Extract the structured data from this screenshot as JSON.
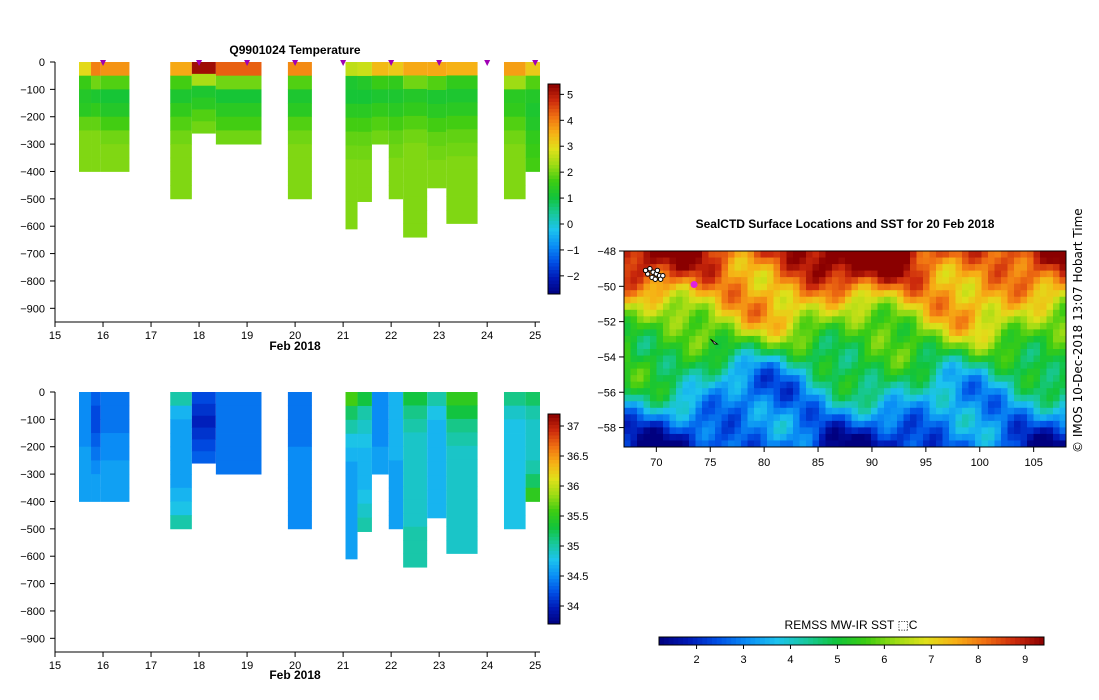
{
  "figure": {
    "side_label": "© IMOS 10-Dec-2018 13:07 Hobart Time"
  },
  "colors": {
    "colormap": [
      "#00007f",
      "#0019b5",
      "#0050e6",
      "#0a8ef5",
      "#1cc3ee",
      "#18c89b",
      "#12c43a",
      "#3ccc12",
      "#9cdc14",
      "#e0e01a",
      "#f7b015",
      "#f07012",
      "#cc2a0c",
      "#8a0000"
    ]
  },
  "chart_data": [
    {
      "id": "temperature",
      "type": "heatmap",
      "title": "Q9901024  Temperature",
      "xlabel": "Feb 2018",
      "ylabel": "",
      "xlim": [
        15,
        25.1
      ],
      "ylim": [
        -950,
        0
      ],
      "x_ticks": [
        15,
        16,
        17,
        18,
        19,
        20,
        21,
        22,
        23,
        24,
        25
      ],
      "y_ticks": [
        0,
        -100,
        -200,
        -300,
        -400,
        -500,
        -600,
        -700,
        -800,
        -900
      ],
      "colorbar": {
        "min": -2.7,
        "max": 5.4,
        "ticks": [
          -2,
          -1,
          0,
          1,
          2,
          3,
          4,
          5
        ]
      },
      "surfacing_markers": [
        16,
        18,
        19,
        20,
        21,
        22,
        23,
        24,
        25
      ],
      "profiles": [
        {
          "x0": 15.5,
          "x1": 15.75,
          "max_depth": 400,
          "values": [
            3.0,
            1.6,
            1.3,
            1.4,
            1.9,
            2.1,
            2.1,
            2.1
          ]
        },
        {
          "x0": 15.75,
          "x1": 15.95,
          "max_depth": 400,
          "values": [
            4.0,
            2.0,
            1.2,
            1.5,
            1.9,
            2.1,
            2.1,
            2.1
          ]
        },
        {
          "x0": 15.95,
          "x1": 16.55,
          "max_depth": 400,
          "values": [
            3.8,
            1.8,
            1.1,
            1.3,
            1.7,
            2.0,
            2.1,
            2.1
          ]
        },
        {
          "x0": 17.4,
          "x1": 17.85,
          "max_depth": 500,
          "values": [
            3.6,
            1.7,
            1.2,
            1.5,
            1.8,
            2.0,
            2.1,
            2.1,
            2.1,
            2.1
          ]
        },
        {
          "x0": 17.85,
          "x1": 18.35,
          "max_depth": 260,
          "values": [
            5.2,
            2.4,
            1.2,
            1.4,
            1.8,
            2.0
          ]
        },
        {
          "x0": 18.35,
          "x1": 19.3,
          "max_depth": 300,
          "values": [
            4.3,
            2.0,
            1.1,
            1.4,
            1.7,
            2.0
          ]
        },
        {
          "x0": 19.85,
          "x1": 20.35,
          "max_depth": 500,
          "values": [
            3.9,
            1.8,
            1.2,
            1.4,
            1.8,
            2.0,
            2.1,
            2.1,
            2.1,
            2.1
          ]
        },
        {
          "x0": 21.05,
          "x1": 21.3,
          "max_depth": 610,
          "values": [
            2.6,
            1.2,
            1.1,
            1.4,
            1.7,
            1.9,
            2.0,
            2.1,
            2.1,
            2.1,
            2.1,
            2.1
          ]
        },
        {
          "x0": 21.3,
          "x1": 21.6,
          "max_depth": 510,
          "values": [
            2.7,
            1.3,
            1.1,
            1.4,
            1.7,
            1.9,
            2.0,
            2.1,
            2.1,
            2.1
          ]
        },
        {
          "x0": 21.6,
          "x1": 21.95,
          "max_depth": 300,
          "values": [
            3.4,
            1.6,
            1.2,
            1.5,
            1.8,
            2.0
          ]
        },
        {
          "x0": 21.95,
          "x1": 22.25,
          "max_depth": 500,
          "values": [
            3.2,
            1.5,
            1.2,
            1.4,
            1.7,
            1.9,
            2.0,
            2.1,
            2.1,
            2.1
          ]
        },
        {
          "x0": 22.25,
          "x1": 22.75,
          "max_depth": 640,
          "values": [
            3.6,
            2.0,
            1.3,
            1.5,
            1.8,
            2.0,
            2.1,
            2.1,
            2.1,
            2.1,
            2.1,
            2.1,
            2.1
          ]
        },
        {
          "x0": 22.75,
          "x1": 23.15,
          "max_depth": 460,
          "values": [
            3.6,
            1.8,
            1.2,
            1.4,
            1.7,
            1.9,
            2.0,
            2.1,
            2.1
          ]
        },
        {
          "x0": 23.15,
          "x1": 23.8,
          "max_depth": 590,
          "values": [
            3.5,
            1.5,
            1.2,
            1.4,
            1.7,
            1.9,
            2.0,
            2.1,
            2.1,
            2.1,
            2.1,
            2.1
          ]
        },
        {
          "x0": 24.35,
          "x1": 24.8,
          "max_depth": 500,
          "values": [
            3.7,
            2.3,
            1.4,
            1.5,
            1.8,
            2.0,
            2.1,
            2.1,
            2.1,
            2.1
          ]
        },
        {
          "x0": 24.8,
          "x1": 25.1,
          "max_depth": 400,
          "values": [
            3.2,
            1.8,
            1.3,
            1.2,
            1.3,
            1.5,
            1.6,
            1.7
          ]
        }
      ]
    },
    {
      "id": "salinity",
      "type": "heatmap",
      "title": "",
      "xlabel": "Feb 2018",
      "ylabel": "",
      "xlim": [
        15,
        25.1
      ],
      "ylim": [
        -950,
        0
      ],
      "x_ticks": [
        15,
        16,
        17,
        18,
        19,
        20,
        21,
        22,
        23,
        24,
        25
      ],
      "y_ticks": [
        0,
        -100,
        -200,
        -300,
        -400,
        -500,
        -600,
        -700,
        -800,
        -900
      ],
      "colorbar": {
        "min": 33.7,
        "max": 37.2,
        "ticks": [
          34,
          34.5,
          35,
          35.5,
          36,
          36.5,
          37
        ]
      },
      "profiles": [
        {
          "x0": 15.5,
          "x1": 15.75,
          "max_depth": 400,
          "values": [
            34.5,
            34.5,
            34.5,
            34.5,
            34.6,
            34.6,
            34.6,
            34.6
          ]
        },
        {
          "x0": 15.75,
          "x1": 15.95,
          "max_depth": 400,
          "values": [
            34.3,
            34.2,
            34.2,
            34.3,
            34.4,
            34.5,
            34.6,
            34.6
          ]
        },
        {
          "x0": 15.95,
          "x1": 16.55,
          "max_depth": 400,
          "values": [
            34.4,
            34.4,
            34.4,
            34.5,
            34.5,
            34.6,
            34.6,
            34.6
          ]
        },
        {
          "x0": 17.4,
          "x1": 17.85,
          "max_depth": 500,
          "values": [
            35.0,
            34.7,
            34.6,
            34.6,
            34.6,
            34.6,
            34.6,
            34.7,
            34.8,
            35.0
          ]
        },
        {
          "x0": 17.85,
          "x1": 18.35,
          "max_depth": 260,
          "values": [
            34.2,
            34.1,
            34.0,
            34.1,
            34.2,
            34.3
          ]
        },
        {
          "x0": 18.35,
          "x1": 19.3,
          "max_depth": 300,
          "values": [
            34.4,
            34.4,
            34.4,
            34.4,
            34.4,
            34.4
          ]
        },
        {
          "x0": 19.85,
          "x1": 20.35,
          "max_depth": 500,
          "values": [
            34.4,
            34.4,
            34.4,
            34.4,
            34.5,
            34.5,
            34.5,
            34.5,
            34.5,
            34.5
          ]
        },
        {
          "x0": 21.05,
          "x1": 21.3,
          "max_depth": 610,
          "values": [
            35.6,
            35.2,
            35.0,
            34.8,
            34.7,
            34.6,
            34.6,
            34.6,
            34.6,
            34.6,
            34.6,
            34.6
          ]
        },
        {
          "x0": 21.3,
          "x1": 21.6,
          "max_depth": 510,
          "values": [
            35.3,
            35.0,
            34.9,
            34.8,
            34.7,
            34.7,
            34.7,
            34.8,
            34.9,
            35.0
          ]
        },
        {
          "x0": 21.6,
          "x1": 21.95,
          "max_depth": 300,
          "values": [
            34.5,
            34.5,
            34.5,
            34.5,
            34.6,
            34.6
          ]
        },
        {
          "x0": 21.95,
          "x1": 22.25,
          "max_depth": 500,
          "values": [
            34.7,
            34.7,
            34.7,
            34.7,
            34.7,
            34.6,
            34.6,
            34.6,
            34.6,
            34.6
          ]
        },
        {
          "x0": 22.25,
          "x1": 22.75,
          "max_depth": 640,
          "values": [
            35.3,
            35.1,
            35.0,
            34.9,
            34.9,
            34.9,
            34.9,
            34.9,
            34.9,
            34.9,
            35.0,
            35.0,
            35.0
          ]
        },
        {
          "x0": 22.75,
          "x1": 23.15,
          "max_depth": 460,
          "values": [
            35.0,
            34.8,
            34.7,
            34.7,
            34.7,
            34.7,
            34.7,
            34.7,
            34.7
          ]
        },
        {
          "x0": 23.15,
          "x1": 23.8,
          "max_depth": 590,
          "values": [
            35.5,
            35.3,
            35.1,
            35.0,
            34.9,
            34.9,
            34.9,
            34.9,
            34.9,
            34.9,
            34.9,
            34.9
          ]
        },
        {
          "x0": 24.35,
          "x1": 24.8,
          "max_depth": 500,
          "values": [
            35.1,
            34.9,
            34.8,
            34.8,
            34.8,
            34.8,
            34.8,
            34.8,
            34.8,
            34.8
          ]
        },
        {
          "x0": 24.8,
          "x1": 25.1,
          "max_depth": 400,
          "values": [
            35.2,
            35.0,
            34.9,
            34.9,
            34.9,
            35.0,
            35.2,
            35.5
          ]
        }
      ]
    },
    {
      "id": "sst_map",
      "type": "heatmap",
      "title": "SealCTD Surface Locations and SST for 20 Feb 2018",
      "xlim": [
        67,
        108
      ],
      "ylim": [
        -59.1,
        -48
      ],
      "x_ticks": [
        70,
        75,
        80,
        85,
        90,
        95,
        100,
        105
      ],
      "y_ticks": [
        -48,
        -50,
        -52,
        -54,
        -56,
        -58
      ],
      "colorbar": {
        "label": "REMSS MW-IR SST ⬚C",
        "min": 1.2,
        "max": 9.4,
        "ticks": [
          2,
          3,
          4,
          5,
          6,
          7,
          8,
          9
        ]
      },
      "highlight_location": {
        "lon": 73.5,
        "lat": -49.9
      },
      "track_positions": [
        {
          "lon": 69.4,
          "lat": -49.0
        },
        {
          "lon": 69.7,
          "lat": -49.2
        },
        {
          "lon": 70.0,
          "lat": -49.3
        },
        {
          "lon": 70.3,
          "lat": -49.4
        },
        {
          "lon": 69.6,
          "lat": -49.5
        },
        {
          "lon": 69.9,
          "lat": -49.6
        },
        {
          "lon": 70.4,
          "lat": -49.6
        },
        {
          "lon": 69.2,
          "lat": -49.3
        },
        {
          "lon": 70.1,
          "lat": -49.1
        },
        {
          "lon": 70.6,
          "lat": -49.4
        },
        {
          "lon": 69.0,
          "lat": -49.1
        }
      ],
      "glider_position": {
        "lon": 75.3,
        "lat": -53.1
      }
    }
  ]
}
